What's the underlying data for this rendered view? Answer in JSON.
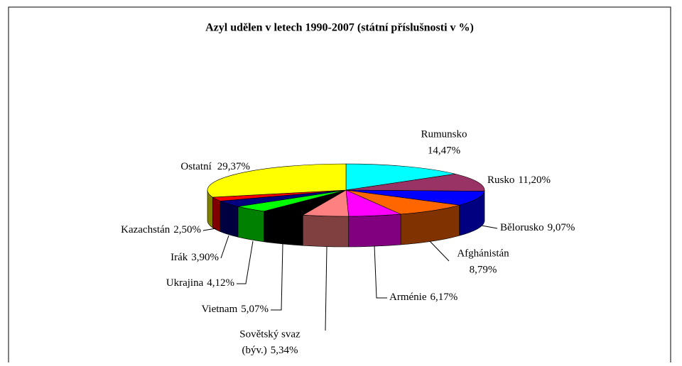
{
  "chart_data": {
    "type": "pie3d",
    "title": "Azyl udělen v letech 1990-2007 (státní příslušnosti v %)",
    "categories": [
      "Rumunsko",
      "Rusko",
      "Bělorusko",
      "Afghánistán",
      "Arménie",
      "Sovětský svaz (býv.)",
      "Vietnam",
      "Ukrajina",
      "Irák",
      "Kazachstán",
      "Ostatní"
    ],
    "values": [
      14.47,
      11.2,
      9.07,
      8.79,
      6.17,
      5.34,
      5.07,
      4.12,
      3.9,
      2.5,
      29.37
    ],
    "value_labels": [
      "14,47%",
      "11,20%",
      "9,07%",
      "8,79%",
      "6,17%",
      "5,34%",
      "5,07%",
      "4,12%",
      "3,90%",
      "2,50%",
      "29,37%"
    ],
    "colors": [
      "#00ffff",
      "#993366",
      "#0000ff",
      "#ff6600",
      "#ff00ff",
      "#ff8080",
      "#000000",
      "#00ff00",
      "#000080",
      "#ff0000",
      "#ffff00"
    ]
  }
}
